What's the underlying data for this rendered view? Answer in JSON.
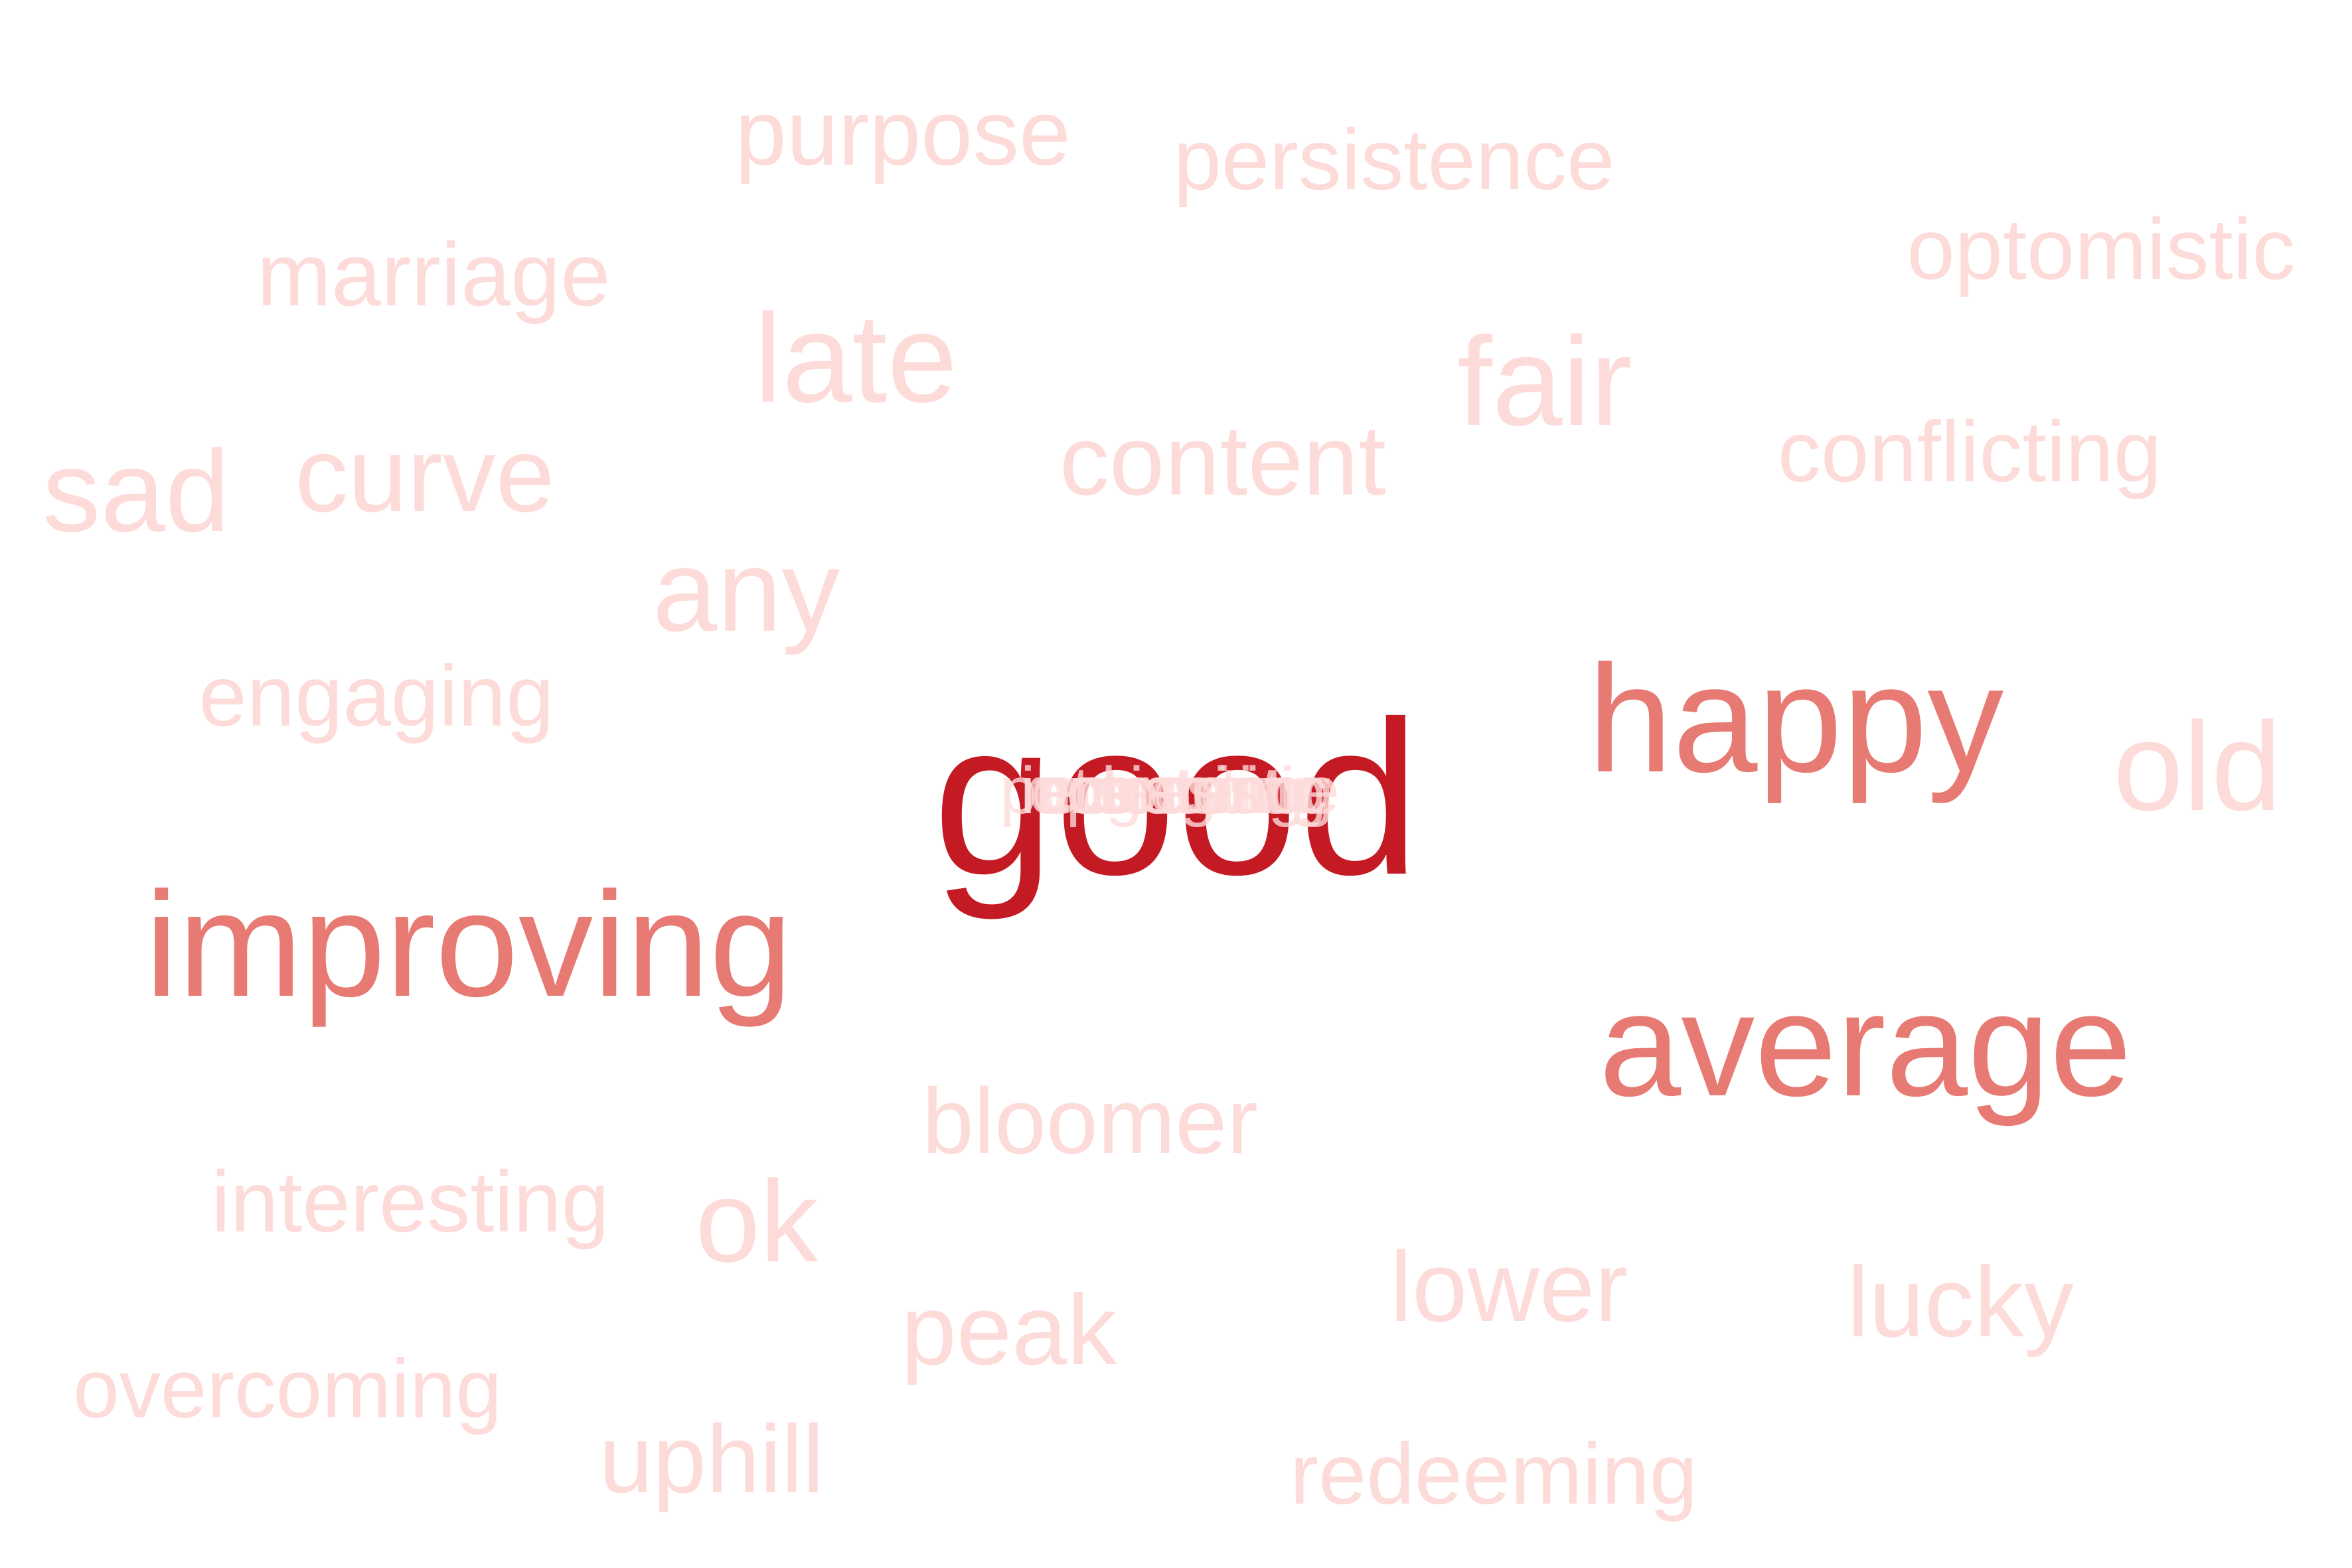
{
  "word_cloud": {
    "colors": {
      "high": "#c41a24",
      "mid": "#e77a73",
      "low": "#fddbd9"
    },
    "words": [
      {
        "text": "good",
        "weight": "high"
      },
      {
        "text": "happy",
        "weight": "mid"
      },
      {
        "text": "improving",
        "weight": "mid"
      },
      {
        "text": "average",
        "weight": "mid"
      },
      {
        "text": "purpose",
        "weight": "low"
      },
      {
        "text": "persistence",
        "weight": "low"
      },
      {
        "text": "optomistic",
        "weight": "low"
      },
      {
        "text": "marriage",
        "weight": "low"
      },
      {
        "text": "late",
        "weight": "low"
      },
      {
        "text": "fair",
        "weight": "low"
      },
      {
        "text": "conflicting",
        "weight": "low"
      },
      {
        "text": "sad",
        "weight": "low"
      },
      {
        "text": "curve",
        "weight": "low"
      },
      {
        "text": "content",
        "weight": "low"
      },
      {
        "text": "any",
        "weight": "low"
      },
      {
        "text": "engaging",
        "weight": "low"
      },
      {
        "text": "old",
        "weight": "low"
      },
      {
        "text": "bloomer",
        "weight": "low"
      },
      {
        "text": "interesting",
        "weight": "low"
      },
      {
        "text": "ok",
        "weight": "low"
      },
      {
        "text": "lower",
        "weight": "low"
      },
      {
        "text": "lucky",
        "weight": "low"
      },
      {
        "text": "peak",
        "weight": "low"
      },
      {
        "text": "overcoming",
        "weight": "low"
      },
      {
        "text": "uphill",
        "weight": "low"
      },
      {
        "text": "redeeming",
        "weight": "low"
      }
    ]
  }
}
